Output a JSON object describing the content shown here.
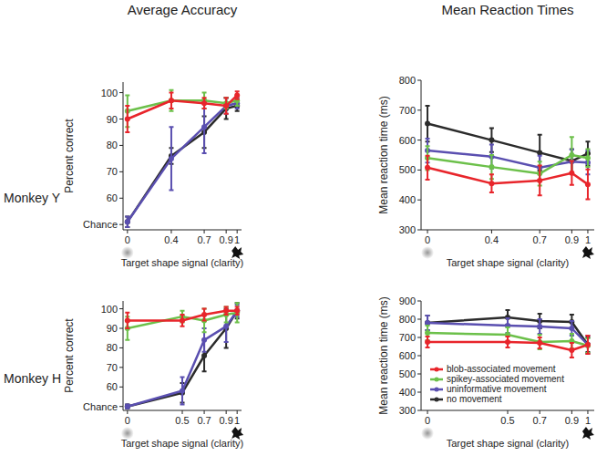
{
  "chart_data": [
    {
      "type": "line",
      "title": "Average Accuracy",
      "annotations": [
        "Monkey Y"
      ],
      "xlabel": "Target shape signal (clarity)",
      "ylabel": "Percent correct",
      "x": [
        0,
        0.4,
        0.7,
        0.9,
        1
      ],
      "xlim": [
        -0.04,
        1.04
      ],
      "xticks": [
        0,
        0.4,
        0.7,
        0.9,
        1
      ],
      "ylim": [
        48,
        104
      ],
      "yticks": [
        {
          "value": 50,
          "label": "Chance"
        },
        60,
        70,
        80,
        90,
        100
      ],
      "grid": false,
      "series": [
        {
          "name": "blob-associated movement",
          "color": "#e8252b",
          "values": [
            90,
            97,
            96,
            95,
            99
          ],
          "errors": [
            5,
            3,
            2,
            3,
            1.5
          ]
        },
        {
          "name": "spikey-associated movement",
          "color": "#6cc04a",
          "values": [
            93,
            97,
            97,
            96,
            97
          ],
          "errors": [
            6,
            4,
            3,
            2,
            2
          ]
        },
        {
          "name": "uninformative movement",
          "color": "#5a4fb0",
          "values": [
            51,
            75,
            87,
            95,
            96
          ],
          "errors": [
            2,
            12,
            10,
            3,
            2
          ]
        },
        {
          "name": "no movement",
          "color": "#2b2b2b",
          "values": [
            51,
            76,
            85,
            94,
            95
          ],
          "errors": [
            2,
            3,
            6,
            4,
            2
          ]
        }
      ]
    },
    {
      "type": "line",
      "title": "Mean Reaction Times",
      "xlabel": "Target shape signal (clarity)",
      "ylabel": "Mean reaction time (ms)",
      "x": [
        0,
        0.4,
        0.7,
        0.9,
        1
      ],
      "xlim": [
        -0.04,
        1.04
      ],
      "xticks": [
        0,
        0.4,
        0.7,
        0.9,
        1
      ],
      "ylim": [
        300,
        800
      ],
      "yticks": [
        300,
        400,
        500,
        600,
        700,
        800
      ],
      "grid": false,
      "series": [
        {
          "name": "blob-associated movement",
          "color": "#e8252b",
          "values": [
            508,
            455,
            465,
            490,
            452
          ],
          "errors": [
            40,
            30,
            50,
            40,
            50
          ]
        },
        {
          "name": "spikey-associated movement",
          "color": "#6cc04a",
          "values": [
            540,
            510,
            488,
            550,
            540
          ],
          "errors": [
            40,
            40,
            40,
            60,
            30
          ]
        },
        {
          "name": "uninformative movement",
          "color": "#5a4fb0",
          "values": [
            565,
            545,
            508,
            528,
            525
          ],
          "errors": [
            40,
            40,
            40,
            40,
            40
          ]
        },
        {
          "name": "no movement",
          "color": "#2b2b2b",
          "values": [
            655,
            600,
            558,
            530,
            555
          ],
          "errors": [
            60,
            40,
            60,
            40,
            40
          ]
        }
      ]
    },
    {
      "type": "line",
      "annotations": [
        "Monkey H"
      ],
      "xlabel": "Target shape signal (clarity)",
      "ylabel": "Percent correct",
      "x": [
        0,
        0.5,
        0.7,
        0.9,
        1
      ],
      "xlim": [
        -0.04,
        1.04
      ],
      "xticks": [
        0,
        0.5,
        0.7,
        0.9,
        1
      ],
      "ylim": [
        48,
        104
      ],
      "yticks": [
        {
          "value": 50,
          "label": "Chance"
        },
        60,
        70,
        80,
        90,
        100
      ],
      "grid": false,
      "series": [
        {
          "name": "blob-associated movement",
          "color": "#e8252b",
          "values": [
            94,
            94,
            97,
            99,
            99
          ],
          "errors": [
            4,
            3,
            3,
            2,
            2
          ]
        },
        {
          "name": "spikey-associated movement",
          "color": "#6cc04a",
          "values": [
            90,
            96,
            94,
            97,
            98
          ],
          "errors": [
            6,
            3,
            6,
            4,
            5
          ]
        },
        {
          "name": "uninformative movement",
          "color": "#5a4fb0",
          "values": [
            50,
            58,
            84,
            91,
            99
          ],
          "errors": [
            1,
            7,
            6,
            8,
            3
          ]
        },
        {
          "name": "no movement",
          "color": "#2b2b2b",
          "values": [
            50,
            57,
            76,
            90,
            99
          ],
          "errors": [
            1,
            5,
            8,
            10,
            4
          ]
        }
      ]
    },
    {
      "type": "line",
      "xlabel": "Target shape signal (clarity)",
      "ylabel": "Mean reaction time (ms)",
      "x": [
        0,
        0.5,
        0.7,
        0.9,
        1
      ],
      "xlim": [
        -0.04,
        1.04
      ],
      "xticks": [
        0,
        0.5,
        0.7,
        0.9,
        1
      ],
      "ylim": [
        300,
        900
      ],
      "yticks": [
        300,
        400,
        500,
        600,
        700,
        800,
        900
      ],
      "grid": false,
      "legend": "bottom-right",
      "series": [
        {
          "name": "blob-associated movement",
          "color": "#e8252b",
          "values": [
            675,
            675,
            670,
            630,
            660
          ],
          "errors": [
            30,
            30,
            30,
            40,
            50
          ]
        },
        {
          "name": "spikey-associated movement",
          "color": "#6cc04a",
          "values": [
            725,
            715,
            675,
            680,
            655
          ],
          "errors": [
            40,
            40,
            40,
            40,
            40
          ]
        },
        {
          "name": "uninformative movement",
          "color": "#5a4fb0",
          "values": [
            780,
            765,
            760,
            750,
            660
          ],
          "errors": [
            40,
            40,
            40,
            40,
            50
          ]
        },
        {
          "name": "no movement",
          "color": "#2b2b2b",
          "values": [
            780,
            810,
            790,
            785,
            660
          ],
          "errors": [
            40,
            40,
            40,
            40,
            40
          ]
        }
      ]
    }
  ]
}
